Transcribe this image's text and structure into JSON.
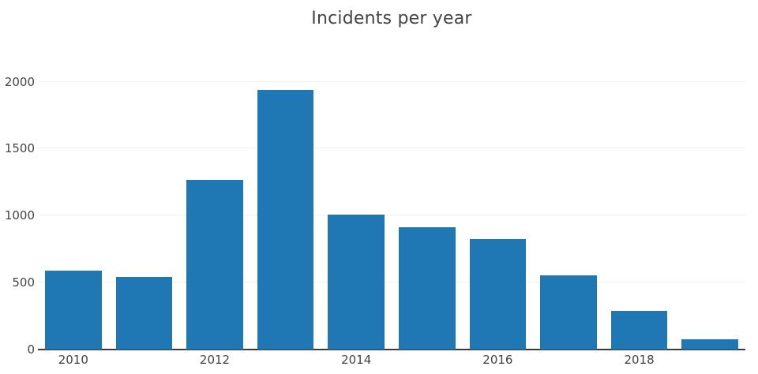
{
  "page": {
    "background_color": "#ffffff"
  },
  "chart_data": {
    "type": "bar",
    "title": "Incidents per year",
    "categories": [
      "2010",
      "2011",
      "2012",
      "2013",
      "2014",
      "2015",
      "2016",
      "2017",
      "2018",
      "2019"
    ],
    "values": [
      590,
      545,
      1270,
      1940,
      1005,
      915,
      825,
      555,
      290,
      78
    ],
    "xlabel": "",
    "ylabel": "",
    "y_ticks": [
      0,
      500,
      1000,
      1500,
      2000
    ],
    "x_tick_labels": [
      "2010",
      "2012",
      "2014",
      "2016",
      "2018"
    ],
    "ylim": [
      0,
      2210
    ],
    "grid": true,
    "legend_position": "none",
    "bar_color": "#1f77b4",
    "grid_color": "#efefef",
    "axis_line_color": "#3a3a3a",
    "text_color": "#444444"
  }
}
